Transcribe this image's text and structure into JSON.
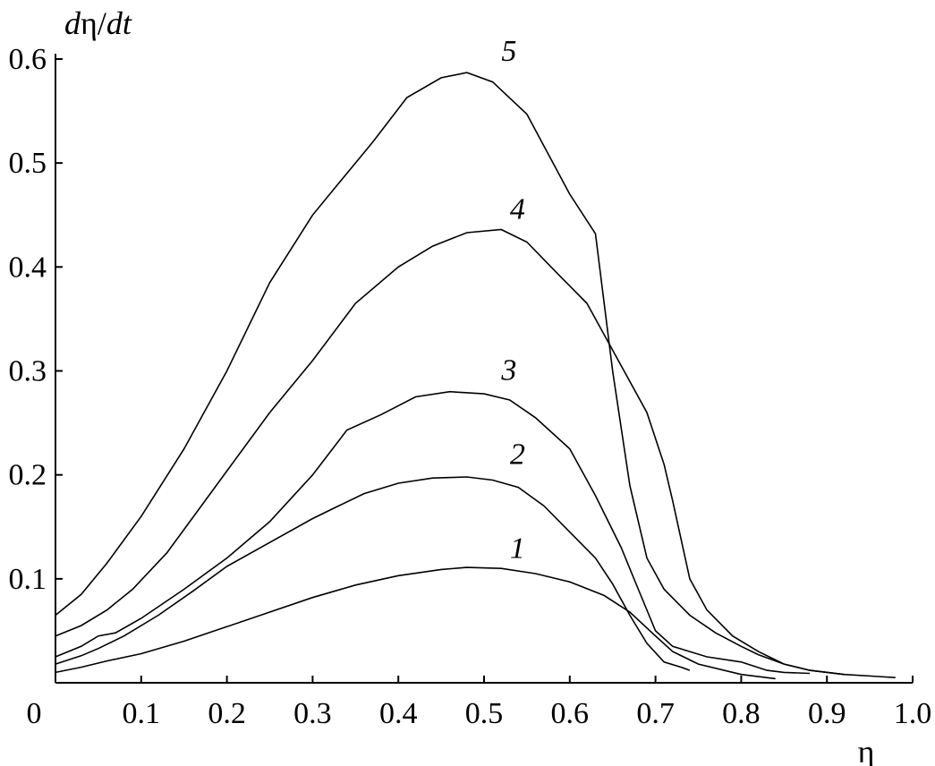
{
  "chart_data": {
    "type": "line",
    "title": "",
    "xlabel": "η",
    "ylabel": {
      "d1": "d",
      "eta": "η",
      "slash": "/",
      "d2": "dt"
    },
    "xlim": [
      0,
      1.0
    ],
    "ylim": [
      0,
      0.6
    ],
    "x_origin_label": "0",
    "x_ticks": [
      0.1,
      0.2,
      0.3,
      0.4,
      0.5,
      0.6,
      0.7,
      0.8,
      0.9,
      1.0
    ],
    "x_tick_labels": [
      "0.1",
      "0.2",
      "0.3",
      "0.4",
      "0.5",
      "0.6",
      "0.7",
      "0.8",
      "0.9",
      "1.0"
    ],
    "y_ticks": [
      0.1,
      0.2,
      0.3,
      0.4,
      0.5,
      0.6
    ],
    "y_tick_labels": [
      "0.1",
      "0.2",
      "0.3",
      "0.4",
      "0.5",
      "0.6"
    ],
    "grid": false,
    "legend": "none",
    "series": [
      {
        "label": "1",
        "label_at": [
          0.49,
          0.122
        ],
        "points": [
          [
            0.0,
            0.01
          ],
          [
            0.03,
            0.015
          ],
          [
            0.06,
            0.021
          ],
          [
            0.1,
            0.028
          ],
          [
            0.15,
            0.04
          ],
          [
            0.2,
            0.054
          ],
          [
            0.25,
            0.068
          ],
          [
            0.3,
            0.082
          ],
          [
            0.35,
            0.094
          ],
          [
            0.4,
            0.103
          ],
          [
            0.45,
            0.109
          ],
          [
            0.48,
            0.111
          ],
          [
            0.52,
            0.11
          ],
          [
            0.56,
            0.105
          ],
          [
            0.6,
            0.097
          ],
          [
            0.64,
            0.084
          ],
          [
            0.67,
            0.068
          ],
          [
            0.7,
            0.045
          ],
          [
            0.72,
            0.03
          ],
          [
            0.75,
            0.018
          ],
          [
            0.8,
            0.008
          ],
          [
            0.84,
            0.004
          ]
        ]
      },
      {
        "label": "2",
        "label_at": [
          0.49,
          0.212
        ],
        "points": [
          [
            0.0,
            0.018
          ],
          [
            0.03,
            0.026
          ],
          [
            0.05,
            0.033
          ],
          [
            0.08,
            0.045
          ],
          [
            0.12,
            0.065
          ],
          [
            0.16,
            0.088
          ],
          [
            0.2,
            0.112
          ],
          [
            0.25,
            0.135
          ],
          [
            0.3,
            0.158
          ],
          [
            0.33,
            0.17
          ],
          [
            0.36,
            0.182
          ],
          [
            0.4,
            0.192
          ],
          [
            0.44,
            0.197
          ],
          [
            0.48,
            0.198
          ],
          [
            0.51,
            0.195
          ],
          [
            0.54,
            0.188
          ],
          [
            0.57,
            0.17
          ],
          [
            0.6,
            0.145
          ],
          [
            0.63,
            0.12
          ],
          [
            0.65,
            0.095
          ],
          [
            0.67,
            0.065
          ],
          [
            0.69,
            0.038
          ],
          [
            0.71,
            0.02
          ],
          [
            0.73,
            0.015
          ],
          [
            0.74,
            0.012
          ]
        ]
      },
      {
        "label": "3",
        "label_at": [
          0.48,
          0.293
        ],
        "points": [
          [
            0.0,
            0.025
          ],
          [
            0.03,
            0.035
          ],
          [
            0.05,
            0.045
          ],
          [
            0.07,
            0.048
          ],
          [
            0.1,
            0.062
          ],
          [
            0.15,
            0.09
          ],
          [
            0.2,
            0.12
          ],
          [
            0.25,
            0.155
          ],
          [
            0.3,
            0.2
          ],
          [
            0.34,
            0.243
          ],
          [
            0.38,
            0.258
          ],
          [
            0.42,
            0.275
          ],
          [
            0.46,
            0.28
          ],
          [
            0.5,
            0.278
          ],
          [
            0.53,
            0.272
          ],
          [
            0.56,
            0.255
          ],
          [
            0.6,
            0.225
          ],
          [
            0.63,
            0.18
          ],
          [
            0.66,
            0.13
          ],
          [
            0.68,
            0.09
          ],
          [
            0.7,
            0.05
          ],
          [
            0.72,
            0.035
          ],
          [
            0.76,
            0.025
          ],
          [
            0.8,
            0.02
          ],
          [
            0.83,
            0.012
          ],
          [
            0.85,
            0.01
          ],
          [
            0.88,
            0.009
          ]
        ]
      },
      {
        "label": "4",
        "label_at": [
          0.49,
          0.448
        ],
        "points": [
          [
            0.0,
            0.045
          ],
          [
            0.03,
            0.055
          ],
          [
            0.06,
            0.07
          ],
          [
            0.09,
            0.09
          ],
          [
            0.13,
            0.125
          ],
          [
            0.17,
            0.17
          ],
          [
            0.21,
            0.215
          ],
          [
            0.25,
            0.26
          ],
          [
            0.3,
            0.31
          ],
          [
            0.35,
            0.365
          ],
          [
            0.4,
            0.4
          ],
          [
            0.44,
            0.42
          ],
          [
            0.48,
            0.433
          ],
          [
            0.52,
            0.436
          ],
          [
            0.55,
            0.424
          ],
          [
            0.59,
            0.39
          ],
          [
            0.62,
            0.365
          ],
          [
            0.64,
            0.335
          ],
          [
            0.66,
            0.305
          ],
          [
            0.69,
            0.26
          ],
          [
            0.71,
            0.21
          ],
          [
            0.72,
            0.175
          ],
          [
            0.74,
            0.1
          ],
          [
            0.76,
            0.07
          ],
          [
            0.79,
            0.045
          ],
          [
            0.82,
            0.03
          ],
          [
            0.85,
            0.018
          ],
          [
            0.88,
            0.012
          ],
          [
            0.92,
            0.008
          ],
          [
            0.96,
            0.006
          ],
          [
            0.98,
            0.005
          ]
        ]
      },
      {
        "label": "5",
        "label_at": [
          0.48,
          0.6
        ],
        "points": [
          [
            0.0,
            0.065
          ],
          [
            0.03,
            0.085
          ],
          [
            0.06,
            0.115
          ],
          [
            0.1,
            0.16
          ],
          [
            0.15,
            0.225
          ],
          [
            0.2,
            0.3
          ],
          [
            0.25,
            0.385
          ],
          [
            0.3,
            0.45
          ],
          [
            0.33,
            0.48
          ],
          [
            0.37,
            0.52
          ],
          [
            0.41,
            0.563
          ],
          [
            0.45,
            0.582
          ],
          [
            0.48,
            0.587
          ],
          [
            0.51,
            0.578
          ],
          [
            0.55,
            0.547
          ],
          [
            0.6,
            0.47
          ],
          [
            0.63,
            0.432
          ],
          [
            0.65,
            0.3
          ],
          [
            0.67,
            0.19
          ],
          [
            0.69,
            0.12
          ],
          [
            0.71,
            0.09
          ],
          [
            0.74,
            0.065
          ],
          [
            0.77,
            0.048
          ],
          [
            0.8,
            0.035
          ],
          [
            0.82,
            0.027
          ],
          [
            0.85,
            0.018
          ],
          [
            0.88,
            0.012
          ],
          [
            0.92,
            0.008
          ]
        ]
      }
    ]
  }
}
